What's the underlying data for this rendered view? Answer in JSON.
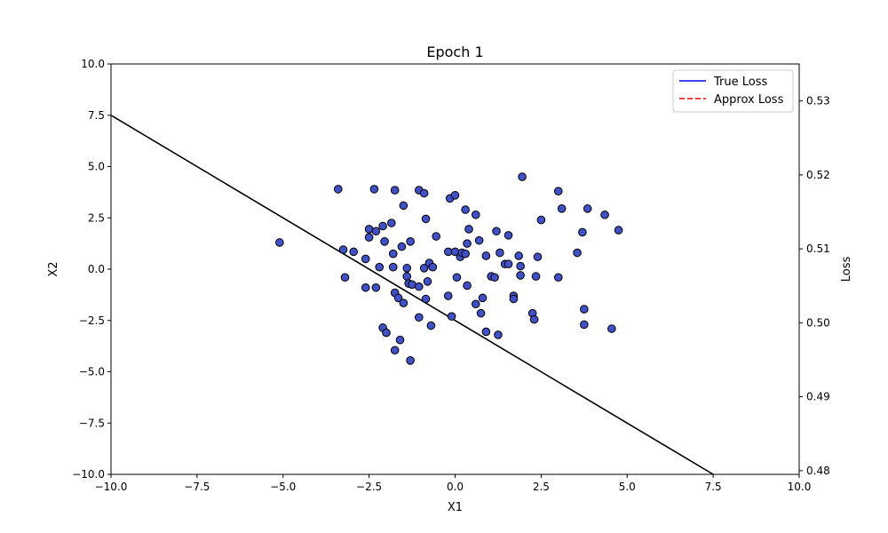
{
  "chart_data": {
    "type": "scatter",
    "title": "Epoch 1",
    "xlabel": "X1",
    "ylabel": "X2",
    "y2label": "Loss",
    "xlim": [
      -10,
      10
    ],
    "ylim": [
      -10,
      10
    ],
    "y2lim": [
      0.4795,
      0.535
    ],
    "xticks": [
      -10.0,
      -7.5,
      -5.0,
      -2.5,
      0.0,
      2.5,
      5.0,
      7.5,
      10.0
    ],
    "xtick_labels": [
      "−10.0",
      "−7.5",
      "−5.0",
      "−2.5",
      "0.0",
      "2.5",
      "5.0",
      "7.5",
      "10.0"
    ],
    "yticks": [
      -10.0,
      -7.5,
      -5.0,
      -2.5,
      0.0,
      2.5,
      5.0,
      7.5,
      10.0
    ],
    "ytick_labels": [
      "−10.0",
      "−7.5",
      "−5.0",
      "−2.5",
      "0.0",
      "2.5",
      "5.0",
      "7.5",
      "10.0"
    ],
    "y2ticks": [
      0.48,
      0.49,
      0.5,
      0.51,
      0.52,
      0.53
    ],
    "y2tick_labels": [
      "0.48",
      "0.49",
      "0.50",
      "0.51",
      "0.52",
      "0.53"
    ],
    "grid": false,
    "legend": {
      "placement": "top-right",
      "entries": [
        {
          "label": "True Loss",
          "color": "#0000ff",
          "style": "solid"
        },
        {
          "label": "Approx Loss",
          "color": "#ff0000",
          "style": "dashed"
        }
      ]
    },
    "decision_boundary": {
      "color": "#000000",
      "points": [
        [
          -10,
          7.5
        ],
        [
          7.5,
          -10
        ]
      ]
    },
    "point_color": "#4050c8",
    "point_edge": "#000000",
    "points": [
      [
        -5.1,
        1.3
      ],
      [
        -3.4,
        3.9
      ],
      [
        -3.25,
        0.95
      ],
      [
        -3.2,
        -0.4
      ],
      [
        -2.95,
        0.85
      ],
      [
        -2.6,
        -0.9
      ],
      [
        -2.6,
        0.5
      ],
      [
        -2.5,
        1.95
      ],
      [
        -2.5,
        1.55
      ],
      [
        -2.35,
        3.9
      ],
      [
        -2.3,
        1.85
      ],
      [
        -2.3,
        -0.9
      ],
      [
        -2.2,
        0.1
      ],
      [
        -2.1,
        2.1
      ],
      [
        -2.05,
        1.35
      ],
      [
        -2.1,
        -2.85
      ],
      [
        -2.0,
        -3.1
      ],
      [
        -1.85,
        2.25
      ],
      [
        -1.8,
        0.75
      ],
      [
        -1.8,
        0.1
      ],
      [
        -1.75,
        3.85
      ],
      [
        -1.75,
        -1.15
      ],
      [
        -1.75,
        -3.95
      ],
      [
        -1.65,
        -1.4
      ],
      [
        -1.6,
        -3.45
      ],
      [
        -1.55,
        1.1
      ],
      [
        -1.5,
        3.1
      ],
      [
        -1.5,
        -1.65
      ],
      [
        -1.4,
        -0.35
      ],
      [
        -1.4,
        0.05
      ],
      [
        -1.35,
        -0.7
      ],
      [
        -1.3,
        1.35
      ],
      [
        -1.3,
        -4.45
      ],
      [
        -1.25,
        -0.75
      ],
      [
        -1.05,
        3.85
      ],
      [
        -1.05,
        -0.85
      ],
      [
        -1.05,
        -2.35
      ],
      [
        -0.9,
        0.05
      ],
      [
        -0.9,
        3.7
      ],
      [
        -0.85,
        2.45
      ],
      [
        -0.85,
        -1.45
      ],
      [
        -0.8,
        -0.6
      ],
      [
        -0.75,
        0.3
      ],
      [
        -0.7,
        -2.75
      ],
      [
        -0.65,
        0.1
      ],
      [
        -0.55,
        1.6
      ],
      [
        -0.2,
        0.85
      ],
      [
        -0.2,
        -1.3
      ],
      [
        -0.15,
        3.45
      ],
      [
        -0.1,
        -2.3
      ],
      [
        0.0,
        3.6
      ],
      [
        0.0,
        0.85
      ],
      [
        0.05,
        -0.4
      ],
      [
        0.15,
        0.6
      ],
      [
        0.2,
        0.8
      ],
      [
        0.3,
        2.9
      ],
      [
        0.3,
        0.75
      ],
      [
        0.35,
        1.25
      ],
      [
        0.35,
        -0.8
      ],
      [
        0.4,
        1.95
      ],
      [
        0.6,
        2.65
      ],
      [
        0.6,
        -1.7
      ],
      [
        0.7,
        1.4
      ],
      [
        0.75,
        -2.15
      ],
      [
        0.8,
        -1.4
      ],
      [
        0.9,
        0.65
      ],
      [
        0.9,
        -3.05
      ],
      [
        1.05,
        -0.35
      ],
      [
        1.15,
        -0.4
      ],
      [
        1.2,
        1.85
      ],
      [
        1.25,
        -3.2
      ],
      [
        1.3,
        0.8
      ],
      [
        1.45,
        0.25
      ],
      [
        1.55,
        0.25
      ],
      [
        1.55,
        1.65
      ],
      [
        1.7,
        -1.3
      ],
      [
        1.7,
        -1.45
      ],
      [
        1.85,
        0.65
      ],
      [
        1.9,
        0.15
      ],
      [
        1.9,
        -0.3
      ],
      [
        1.95,
        4.5
      ],
      [
        2.25,
        -2.15
      ],
      [
        2.3,
        -2.45
      ],
      [
        2.35,
        -0.35
      ],
      [
        2.4,
        0.6
      ],
      [
        2.5,
        2.4
      ],
      [
        3.0,
        3.8
      ],
      [
        3.0,
        -0.4
      ],
      [
        3.1,
        2.95
      ],
      [
        3.55,
        0.8
      ],
      [
        3.7,
        1.8
      ],
      [
        3.75,
        -1.95
      ],
      [
        3.75,
        -2.7
      ],
      [
        3.85,
        2.95
      ],
      [
        4.35,
        2.65
      ],
      [
        4.55,
        -2.9
      ],
      [
        4.75,
        1.9
      ]
    ]
  }
}
